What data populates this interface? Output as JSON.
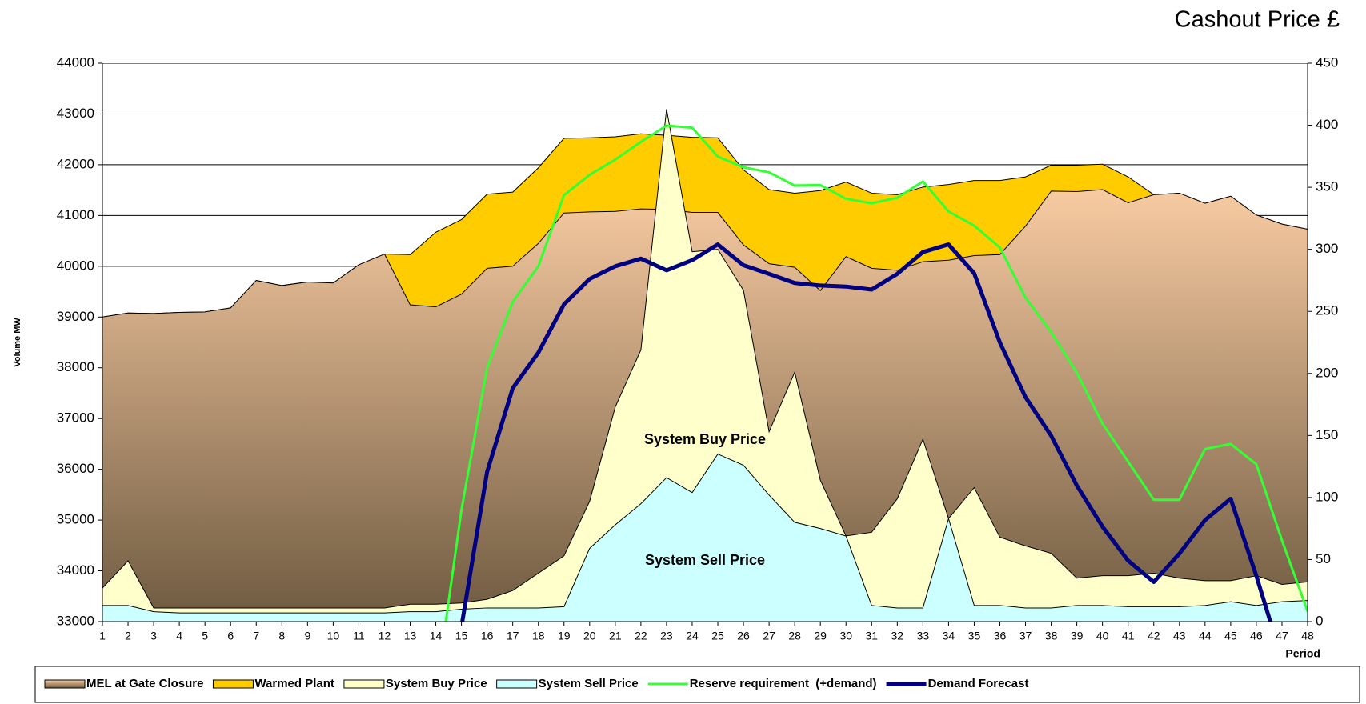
{
  "chart_data": {
    "type": "combo",
    "title": "Cashout Price £",
    "y_label": "Volume MW",
    "x_label": "Period",
    "annotations": [
      "System Buy Price",
      "System Sell Price"
    ],
    "categories": [
      1,
      2,
      3,
      4,
      5,
      6,
      7,
      8,
      9,
      10,
      11,
      12,
      13,
      14,
      15,
      16,
      17,
      18,
      19,
      20,
      21,
      22,
      23,
      24,
      25,
      26,
      27,
      28,
      29,
      30,
      31,
      32,
      33,
      34,
      35,
      36,
      37,
      38,
      39,
      40,
      41,
      42,
      43,
      44,
      45,
      46,
      47,
      48
    ],
    "ylim": [
      33000,
      44000
    ],
    "yticks": [
      33000,
      34000,
      35000,
      36000,
      37000,
      38000,
      39000,
      40000,
      41000,
      42000,
      43000,
      44000
    ],
    "y2lim": [
      0,
      450
    ],
    "y2ticks": [
      0,
      50,
      100,
      150,
      200,
      250,
      300,
      350,
      400,
      450
    ],
    "grid": true,
    "legend": "bottom",
    "series": [
      {
        "name": "Warmed Plant",
        "type": "area",
        "color": "#ffcc00",
        "values": [
          39000,
          39080,
          39070,
          39090,
          39100,
          39180,
          39720,
          39620,
          39690,
          39670,
          40030,
          40240,
          40230,
          40670,
          40920,
          41420,
          41460,
          41940,
          42520,
          42530,
          42550,
          42610,
          42580,
          42540,
          42530,
          41900,
          41510,
          41440,
          41490,
          41660,
          41440,
          41410,
          41560,
          41610,
          41690,
          41690,
          41760,
          41990,
          41990,
          42010,
          41760,
          41410,
          41440,
          41240,
          41380,
          41010,
          40830,
          40730
        ]
      },
      {
        "name": "MEL at Gate Closure",
        "type": "area",
        "color": [
          "#f8cba2",
          "#6e5a40"
        ],
        "values": [
          39000,
          39080,
          39070,
          39090,
          39100,
          39180,
          39720,
          39620,
          39690,
          39670,
          40030,
          40240,
          39240,
          39200,
          39450,
          39960,
          40000,
          40450,
          41050,
          41070,
          41080,
          41130,
          41120,
          41060,
          41060,
          40420,
          40050,
          39980,
          39520,
          40190,
          39960,
          39920,
          40090,
          40120,
          40210,
          40230,
          40790,
          41480,
          41470,
          41510,
          41250,
          41410,
          41440,
          41240,
          41380,
          41010,
          40830,
          40730
        ]
      },
      {
        "name": "System Buy Price",
        "type": "area",
        "axis": "y2",
        "color": "#ffffcc",
        "values": [
          27,
          49,
          11,
          11,
          11,
          11,
          11,
          11,
          11,
          11,
          11,
          11,
          14,
          14,
          15,
          18,
          25,
          39,
          53,
          97,
          173,
          219,
          413,
          298,
          300,
          267,
          153,
          201,
          114,
          69,
          72,
          99,
          147,
          83,
          108,
          68,
          61,
          55,
          35,
          37,
          37,
          39,
          35,
          33,
          33,
          37,
          30,
          32
        ]
      },
      {
        "name": "System Sell Price",
        "type": "area",
        "axis": "y2",
        "color": "#ccffff",
        "values": [
          13,
          13,
          8,
          7,
          7,
          7,
          7,
          7,
          7,
          7,
          7,
          7,
          8,
          8,
          10,
          11,
          11,
          11,
          12,
          59,
          78,
          95,
          116,
          104,
          135,
          126,
          102,
          80,
          75,
          69,
          13,
          11,
          11,
          83,
          13,
          13,
          11,
          11,
          13,
          13,
          12,
          12,
          12,
          13,
          16,
          13,
          16,
          17
        ]
      },
      {
        "name": "Reserve requirement  (+demand)",
        "type": "line",
        "color": "#33ff33",
        "values": [
          null,
          null,
          null,
          null,
          null,
          null,
          null,
          null,
          null,
          null,
          null,
          null,
          null,
          31600,
          35200,
          38000,
          39300,
          40000,
          41400,
          41800,
          42100,
          42450,
          42770,
          42730,
          42160,
          41950,
          41850,
          41590,
          41600,
          41330,
          41240,
          41350,
          41670,
          41080,
          40800,
          40370,
          39380,
          38700,
          37900,
          36900,
          36150,
          35400,
          35400,
          36400,
          36500,
          36100,
          34600,
          33200
        ]
      },
      {
        "name": "Demand Forecast",
        "type": "line",
        "color": "#000080",
        "values": [
          null,
          null,
          null,
          null,
          null,
          null,
          null,
          null,
          null,
          null,
          null,
          null,
          null,
          null,
          32900,
          35950,
          37600,
          38300,
          39250,
          39750,
          40000,
          40150,
          39920,
          40120,
          40430,
          40020,
          39850,
          39670,
          39620,
          39600,
          39540,
          39850,
          40280,
          40430,
          39860,
          38500,
          37420,
          36660,
          35680,
          34870,
          34200,
          33780,
          34340,
          35000,
          35420,
          33900,
          32250,
          null
        ]
      }
    ]
  }
}
